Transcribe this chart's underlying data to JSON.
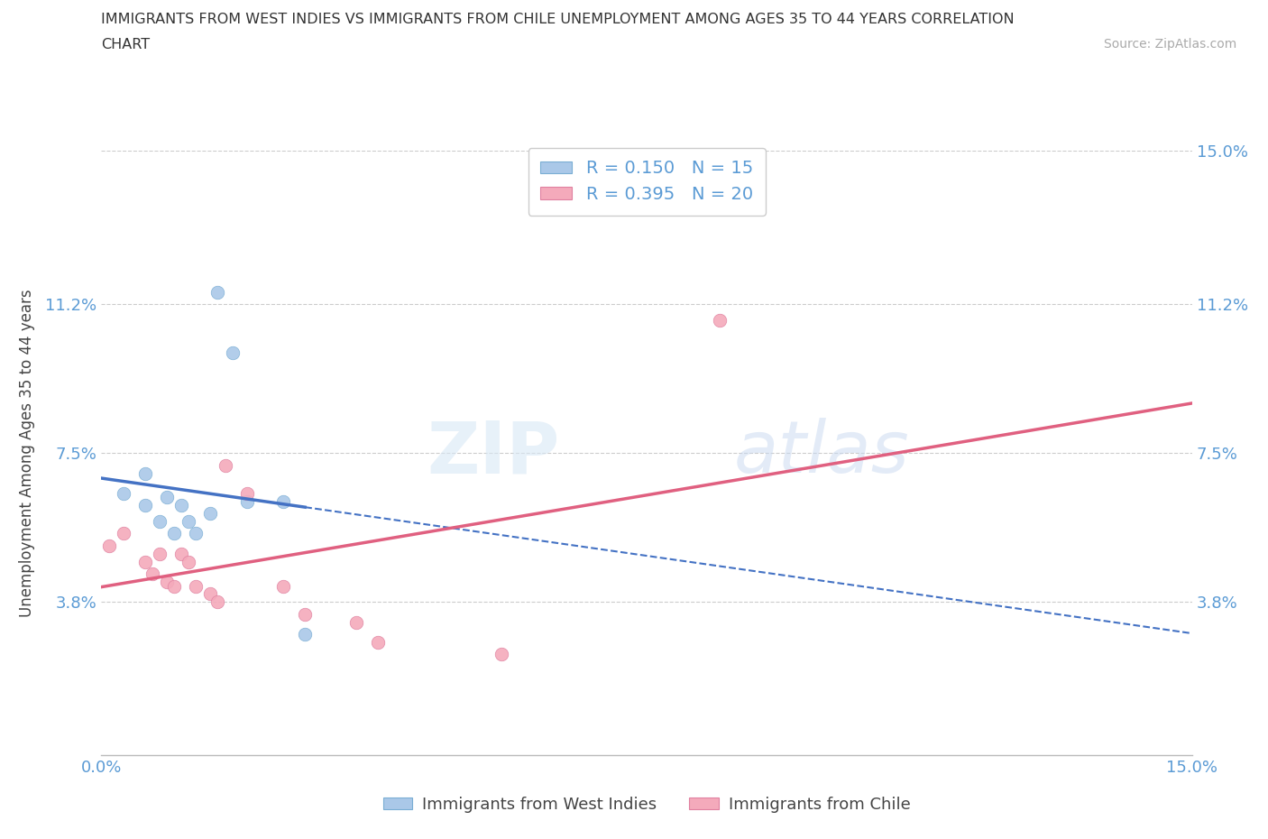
{
  "title_line1": "IMMIGRANTS FROM WEST INDIES VS IMMIGRANTS FROM CHILE UNEMPLOYMENT AMONG AGES 35 TO 44 YEARS CORRELATION",
  "title_line2": "CHART",
  "source": "Source: ZipAtlas.com",
  "ylabel": "Unemployment Among Ages 35 to 44 years",
  "xlim": [
    0.0,
    0.15
  ],
  "ylim": [
    0.0,
    0.15
  ],
  "xtick_positions": [
    0.0,
    0.15
  ],
  "xtick_labels": [
    "0.0%",
    "15.0%"
  ],
  "ytick_labels_left": [
    "11.2%",
    "7.5%",
    "3.8%"
  ],
  "ytick_positions_left": [
    0.112,
    0.075,
    0.038
  ],
  "ytick_labels_right": [
    "15.0%",
    "11.2%",
    "7.5%",
    "3.8%"
  ],
  "ytick_positions_right": [
    0.15,
    0.112,
    0.075,
    0.038
  ],
  "west_indies_x": [
    0.003,
    0.006,
    0.006,
    0.008,
    0.009,
    0.01,
    0.011,
    0.012,
    0.013,
    0.015,
    0.016,
    0.018,
    0.02,
    0.025,
    0.028
  ],
  "west_indies_y": [
    0.065,
    0.07,
    0.062,
    0.058,
    0.064,
    0.055,
    0.062,
    0.058,
    0.055,
    0.06,
    0.115,
    0.1,
    0.063,
    0.063,
    0.03
  ],
  "chile_x": [
    0.001,
    0.003,
    0.006,
    0.007,
    0.008,
    0.009,
    0.01,
    0.011,
    0.012,
    0.013,
    0.015,
    0.016,
    0.017,
    0.02,
    0.025,
    0.028,
    0.035,
    0.038,
    0.055,
    0.085
  ],
  "chile_y": [
    0.052,
    0.055,
    0.048,
    0.045,
    0.05,
    0.043,
    0.042,
    0.05,
    0.048,
    0.042,
    0.04,
    0.038,
    0.072,
    0.065,
    0.042,
    0.035,
    0.033,
    0.028,
    0.025,
    0.108
  ],
  "west_indies_color": "#aac8e8",
  "chile_color": "#f4aabb",
  "west_indies_line_color": "#4472c4",
  "chile_line_color": "#e06080",
  "west_indies_R": 0.15,
  "west_indies_N": 15,
  "chile_R": 0.395,
  "chile_N": 20,
  "marker_size": 110,
  "background_color": "#ffffff",
  "watermark_zip": "ZIP",
  "watermark_atlas": "atlas",
  "grid_color": "#cccccc",
  "tick_color": "#5b9bd5",
  "label_color": "#444444"
}
